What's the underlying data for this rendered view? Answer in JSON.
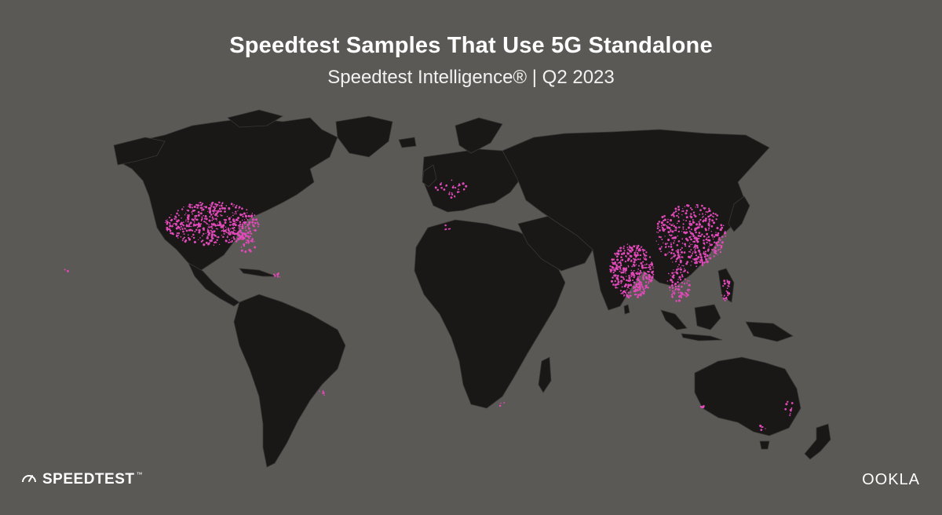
{
  "header": {
    "title": "Speedtest Samples That Use 5G Standalone",
    "subtitle": "Speedtest Intelligence® | Q2 2023"
  },
  "branding": {
    "left_logo": "SPEEDTEST",
    "left_icon": "speedometer-icon",
    "right_logo": "OOKLA"
  },
  "colors": {
    "background": "#5b5955",
    "land": "#1a1717",
    "borders": "#3c3838",
    "samples": "#e04ab8"
  },
  "map": {
    "projection": "world",
    "layer": "5G Standalone sample density",
    "highlighted_regions": [
      "United States",
      "India",
      "China",
      "Southeast Asia",
      "Australia (sparse)",
      "Europe (sparse)",
      "South America (sparse)"
    ]
  }
}
